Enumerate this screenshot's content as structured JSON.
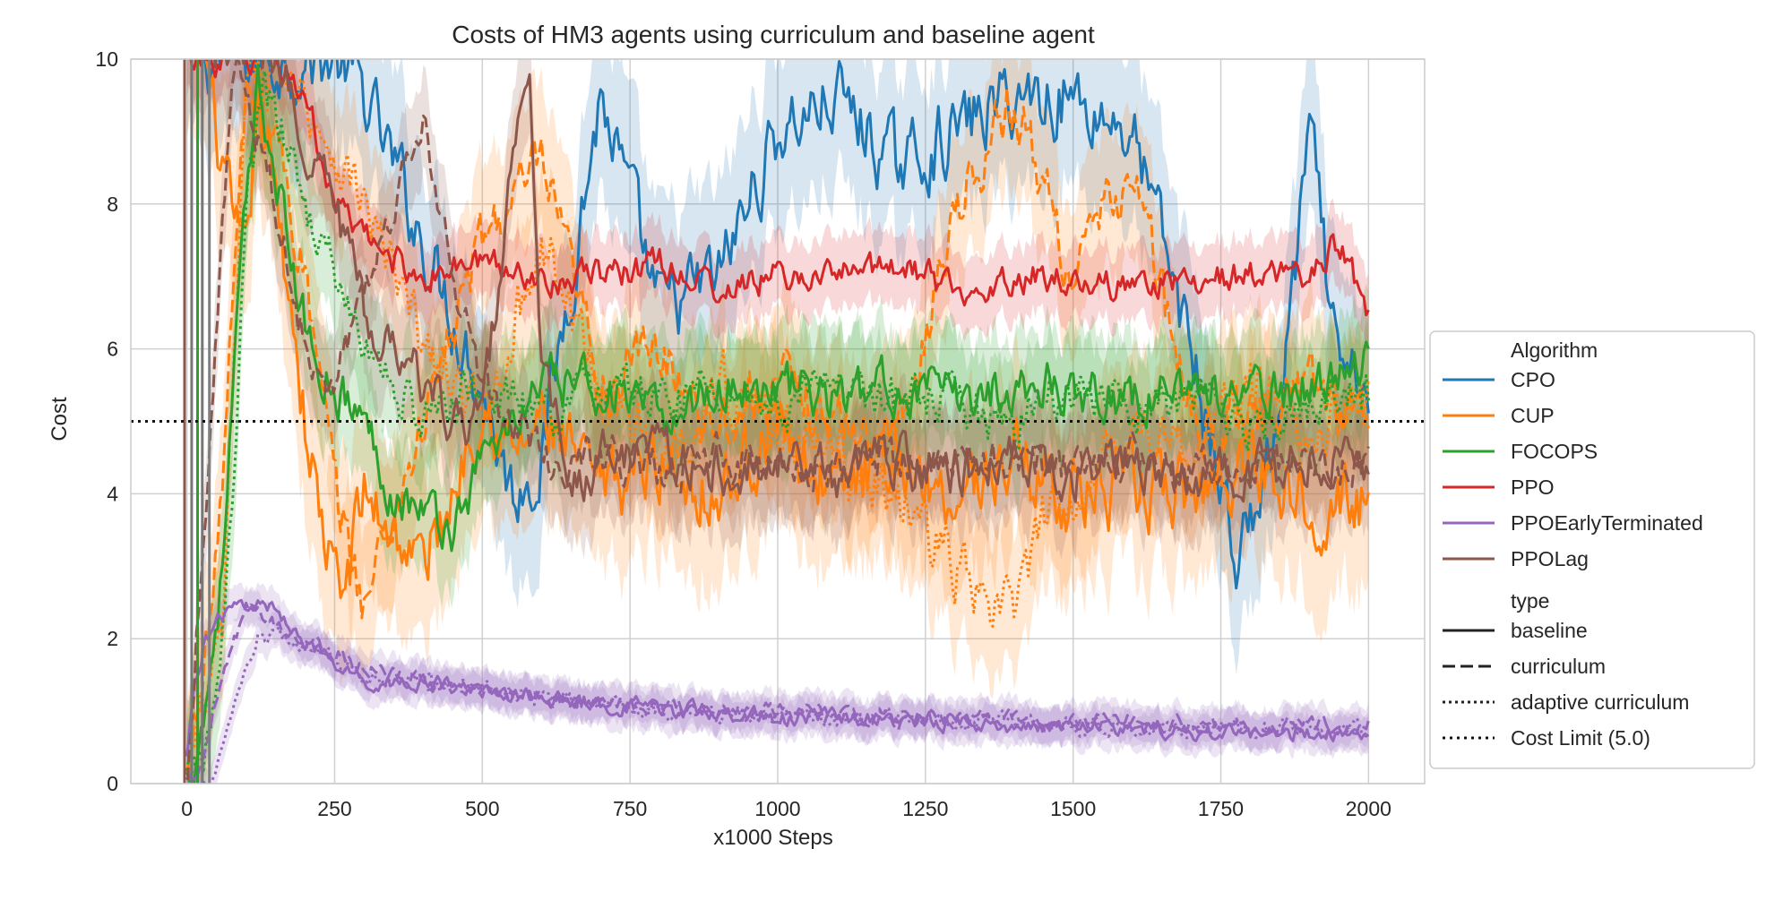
{
  "chart_data": {
    "type": "line",
    "title": "Costs of HM3 agents using curriculum and baseline agent",
    "xlabel": "x1000 Steps",
    "ylabel": "Cost",
    "xlim": [
      -95,
      2095
    ],
    "ylim": [
      0,
      10
    ],
    "x_ticks": [
      0,
      250,
      500,
      750,
      1000,
      1250,
      1500,
      1750,
      2000
    ],
    "x_tick_labels": [
      "0",
      "250",
      "500",
      "750",
      "1000",
      "1250",
      "1500",
      "1750",
      "2000"
    ],
    "y_ticks": [
      0,
      2,
      4,
      6,
      8,
      10
    ],
    "y_tick_labels": [
      "0",
      "2",
      "4",
      "6",
      "8",
      "10"
    ],
    "grid": true,
    "legend_placement": "right, outside plot",
    "cost_limit": 5.0,
    "legend": {
      "algorithm_header": "Algorithm",
      "type_header": "type",
      "algorithms": [
        {
          "name": "CPO",
          "color": "#1f77b4"
        },
        {
          "name": "CUP",
          "color": "#ff7f0e"
        },
        {
          "name": "FOCOPS",
          "color": "#2ca02c"
        },
        {
          "name": "PPO",
          "color": "#d62728"
        },
        {
          "name": "PPOEarlyTerminated",
          "color": "#9467bd"
        },
        {
          "name": "PPOLag",
          "color": "#8c564b"
        }
      ],
      "types": [
        {
          "name": "baseline",
          "dash": "solid"
        },
        {
          "name": "curriculum",
          "dash": "dashed"
        },
        {
          "name": "adaptive curriculum",
          "dash": "dotted"
        },
        {
          "name": "Cost Limit (5.0)",
          "dash": "dotted-black"
        }
      ]
    },
    "series": [
      {
        "name": "CPO",
        "type": "baseline",
        "color": "#1f77b4",
        "x": [
          0,
          10,
          20,
          40,
          70,
          100,
          150,
          200,
          250,
          300,
          400,
          500,
          550,
          600,
          700,
          800,
          900,
          1000,
          1100,
          1200,
          1300,
          1400,
          1500,
          1600,
          1700,
          1780,
          1850,
          1900,
          1950,
          2000
        ],
        "y": [
          10,
          10,
          10,
          10,
          10,
          10,
          10,
          10,
          10,
          9.5,
          7.5,
          5.5,
          4.0,
          4.5,
          9.5,
          6.5,
          7.0,
          9.0,
          9.5,
          8.5,
          9.0,
          9.5,
          9.5,
          9.0,
          6.0,
          3.0,
          5.0,
          9.0,
          5.5,
          5.5
        ],
        "band": 1.2
      },
      {
        "name": "CUP",
        "type": "baseline",
        "color": "#ff7f0e",
        "x": [
          0,
          30,
          60,
          80,
          100,
          120,
          150,
          180,
          200,
          230,
          260,
          300,
          350,
          400,
          450,
          500,
          550,
          600,
          650,
          700,
          800,
          900,
          1000,
          1100,
          1200,
          1300,
          1400,
          1500,
          1600,
          1700,
          1800,
          1900,
          2000
        ],
        "y": [
          10,
          10,
          8.5,
          7.5,
          7.0,
          9.5,
          8.0,
          6.5,
          5.0,
          3.5,
          2.5,
          4.0,
          3.5,
          3.0,
          4.0,
          5.5,
          4.5,
          5.0,
          4.5,
          4.0,
          4.5,
          4.0,
          5.0,
          4.0,
          4.5,
          4.0,
          4.5,
          4.0,
          4.0,
          4.0,
          4.5,
          4.0,
          3.8
        ],
        "band": 1.2
      },
      {
        "name": "CUP",
        "type": "curriculum",
        "color": "#ff7f0e",
        "x": [
          0,
          50,
          100,
          150,
          200,
          250,
          300,
          400,
          500,
          600,
          700,
          800,
          900,
          1000,
          1100,
          1200,
          1300,
          1400,
          1500,
          1600,
          1700,
          1800,
          1900,
          2000
        ],
        "y": [
          0,
          3,
          9.5,
          9.0,
          7.0,
          4.0,
          2.5,
          5.0,
          7.5,
          8.5,
          5.5,
          6.0,
          5.0,
          5.5,
          5.0,
          4.5,
          8.0,
          9.5,
          7.0,
          8.5,
          5.0,
          5.0,
          5.5,
          5.0
        ],
        "band": 1.0
      },
      {
        "name": "CUP",
        "type": "adaptive curriculum",
        "color": "#ff7f0e",
        "x": [
          0,
          60,
          100,
          150,
          200,
          300,
          400,
          500,
          600,
          700,
          800,
          900,
          1000,
          1100,
          1200,
          1300,
          1360,
          1400,
          1450,
          1500,
          1600,
          1700,
          1800,
          1900,
          2000
        ],
        "y": [
          0,
          2,
          9.5,
          10,
          9.5,
          8.0,
          6.0,
          5.0,
          7.5,
          5.5,
          4.5,
          5.5,
          5.0,
          4.5,
          4.0,
          3.0,
          2.3,
          2.5,
          3.5,
          4.0,
          5.0,
          4.5,
          5.5,
          5.0,
          5.2
        ],
        "band": 1.0
      },
      {
        "name": "FOCOPS",
        "type": "baseline",
        "color": "#2ca02c",
        "x": [
          0,
          30,
          60,
          90,
          120,
          150,
          180,
          210,
          250,
          300,
          350,
          400,
          450,
          500,
          550,
          600,
          700,
          800,
          900,
          1000,
          1100,
          1200,
          1300,
          1400,
          1500,
          1600,
          1700,
          1800,
          1900,
          2000
        ],
        "y": [
          0,
          1,
          3,
          7,
          9.5,
          8.5,
          7.0,
          6.0,
          5.5,
          5.0,
          4.0,
          3.8,
          3.5,
          4.5,
          5.0,
          5.5,
          5.5,
          5.0,
          5.5,
          5.5,
          5.3,
          5.5,
          5.3,
          5.5,
          5.5,
          5.3,
          5.5,
          5.3,
          5.5,
          5.8
        ],
        "band": 0.8
      },
      {
        "name": "FOCOPS",
        "type": "adaptive curriculum",
        "color": "#2ca02c",
        "x": [
          0,
          40,
          80,
          100,
          130,
          160,
          200,
          300,
          400,
          500,
          600,
          700,
          800,
          900,
          1000,
          1100,
          1200,
          1300,
          1400,
          1500,
          1600,
          1700,
          1800,
          1900,
          2000
        ],
        "y": [
          0,
          0.5,
          4,
          8,
          9.5,
          9.0,
          8.0,
          6.0,
          5.0,
          5.5,
          5.0,
          5.5,
          5.3,
          5.5,
          5.2,
          5.5,
          5.3,
          5.2,
          5.0,
          5.5,
          5.2,
          5.3,
          5.0,
          5.3,
          5.3
        ],
        "band": 0.8
      },
      {
        "name": "PPO",
        "type": "baseline",
        "color": "#d62728",
        "x": [
          0,
          50,
          100,
          150,
          200,
          250,
          300,
          400,
          500,
          600,
          700,
          800,
          900,
          1000,
          1100,
          1200,
          1300,
          1400,
          1500,
          1600,
          1700,
          1800,
          1900,
          1950,
          2000
        ],
        "y": [
          10,
          10,
          10,
          10,
          9.5,
          8.0,
          7.5,
          7.0,
          7.2,
          7.0,
          7.0,
          7.2,
          6.8,
          7.0,
          7.0,
          7.2,
          6.8,
          7.0,
          7.0,
          6.8,
          7.0,
          7.0,
          7.0,
          7.5,
          6.5
        ],
        "band": 0.5
      },
      {
        "name": "PPOEarlyTerminated",
        "type": "baseline",
        "color": "#9467bd",
        "x": [
          0,
          10,
          30,
          60,
          100,
          150,
          200,
          250,
          300,
          400,
          500,
          600,
          700,
          800,
          900,
          1000,
          1100,
          1200,
          1300,
          1400,
          1500,
          1600,
          1700,
          1800,
          1900,
          2000
        ],
        "y": [
          0.3,
          1.2,
          2.0,
          2.3,
          2.5,
          2.4,
          2.0,
          1.6,
          1.4,
          1.4,
          1.3,
          1.2,
          1.1,
          1.0,
          1.0,
          0.9,
          0.9,
          0.9,
          0.85,
          0.8,
          0.8,
          0.75,
          0.7,
          0.7,
          0.7,
          0.75
        ],
        "band": 0.25
      },
      {
        "name": "PPOEarlyTerminated",
        "type": "curriculum",
        "color": "#9467bd",
        "x": [
          0,
          30,
          60,
          100,
          150,
          200,
          250,
          300,
          400,
          500,
          600,
          700,
          800,
          900,
          1000,
          1100,
          1200,
          1300,
          1400,
          1500,
          1600,
          1700,
          1800,
          1900,
          2000
        ],
        "y": [
          0,
          0.3,
          1.5,
          2.4,
          2.2,
          2.0,
          1.8,
          1.6,
          1.4,
          1.3,
          1.2,
          1.1,
          1.1,
          1.0,
          1.0,
          0.95,
          0.9,
          0.9,
          0.9,
          0.85,
          0.85,
          0.8,
          0.8,
          0.85,
          0.8
        ],
        "band": 0.25
      },
      {
        "name": "PPOEarlyTerminated",
        "type": "adaptive curriculum",
        "color": "#9467bd",
        "x": [
          0,
          40,
          80,
          120,
          160,
          200,
          250,
          300,
          400,
          500,
          600,
          700,
          800,
          900,
          1000,
          1100,
          1200,
          1300,
          1400,
          1500,
          1600,
          1700,
          1800,
          1900,
          2000
        ],
        "y": [
          0,
          0,
          1.0,
          2.0,
          2.0,
          1.9,
          1.7,
          1.5,
          1.4,
          1.3,
          1.2,
          1.1,
          1.0,
          1.0,
          0.95,
          0.9,
          0.9,
          0.85,
          0.85,
          0.8,
          0.8,
          0.75,
          0.8,
          0.8,
          0.75
        ],
        "band": 0.25
      },
      {
        "name": "PPOLag",
        "type": "baseline",
        "color": "#8c564b",
        "x": [
          0,
          50,
          100,
          150,
          200,
          250,
          300,
          350,
          400,
          450,
          500,
          550,
          580,
          600,
          650,
          700,
          800,
          900,
          1000,
          1100,
          1200,
          1300,
          1400,
          1500,
          1600,
          1700,
          1800,
          1900,
          2000
        ],
        "y": [
          10,
          10,
          10,
          10,
          9.0,
          8.0,
          6.5,
          6.0,
          5.5,
          5.0,
          5.0,
          8.5,
          9.5,
          6.0,
          4.0,
          4.5,
          4.5,
          4.3,
          4.5,
          4.3,
          4.5,
          4.3,
          4.5,
          4.3,
          4.5,
          4.2,
          4.3,
          4.4,
          4.5
        ],
        "band": 0.8
      },
      {
        "name": "PPOLag",
        "type": "curriculum",
        "color": "#8c564b",
        "x": [
          0,
          80,
          150,
          200,
          250,
          300,
          350,
          400,
          450,
          500,
          600,
          700,
          800,
          900,
          1000,
          1100,
          1200,
          1300,
          1400,
          1500,
          1600,
          1700,
          1800,
          1900,
          2000
        ],
        "y": [
          0,
          10,
          8.0,
          6.0,
          5.5,
          7.0,
          8.0,
          9.0,
          7.0,
          5.5,
          4.5,
          4.5,
          4.3,
          4.5,
          4.5,
          4.3,
          4.5,
          4.4,
          4.5,
          4.3,
          4.5,
          4.3,
          4.4,
          4.3,
          4.4
        ],
        "band": 0.7
      }
    ]
  }
}
